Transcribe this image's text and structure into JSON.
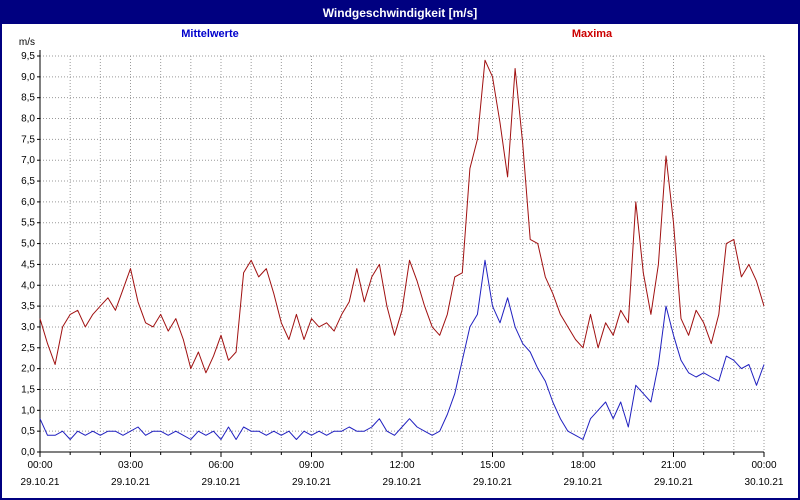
{
  "window": {
    "title": "Windgeschwindigkeit [m/s]"
  },
  "legend": {
    "mean_label": "Mittelwerte",
    "max_label": "Maxima"
  },
  "colors": {
    "titlebar_bg": "#000080",
    "window_border": "#000080",
    "mean_line": "#2020c0",
    "max_line": "#a01010",
    "mean_legend": "#0000cc",
    "max_legend": "#cc0000",
    "grid": "#999999",
    "axis": "#000000",
    "label_text": "#000000"
  },
  "chart_data": {
    "type": "line",
    "title": "Windgeschwindigkeit [m/s]",
    "ylabel": "m/s",
    "ylim": [
      0,
      9.5
    ],
    "ytick_step": 0.5,
    "ytick_labels": [
      "0,0",
      "0,5",
      "1,0",
      "1,5",
      "2,0",
      "2,5",
      "3,0",
      "3,5",
      "4,0",
      "4,5",
      "5,0",
      "5,5",
      "6,0",
      "6,5",
      "7,0",
      "7,5",
      "8,0",
      "8,5",
      "9,0",
      "9,5"
    ],
    "x_hours": 24,
    "xtick_hours": [
      0,
      3,
      6,
      9,
      12,
      15,
      18,
      21,
      24
    ],
    "xtick_labels": [
      "00:00",
      "03:00",
      "06:00",
      "09:00",
      "12:00",
      "15:00",
      "18:00",
      "21:00",
      "00:00"
    ],
    "xtick_dates": [
      "29.10.21",
      "29.10.21",
      "29.10.21",
      "29.10.21",
      "29.10.21",
      "29.10.21",
      "29.10.21",
      "29.10.21",
      "30.10.21"
    ],
    "sample_interval_minutes": 15,
    "grid": true,
    "legend_position": "top",
    "series": [
      {
        "name": "Maxima",
        "color": "#a01010",
        "values": [
          3.2,
          2.6,
          2.1,
          3.0,
          3.3,
          3.4,
          3.0,
          3.3,
          3.5,
          3.7,
          3.4,
          3.9,
          4.4,
          3.6,
          3.1,
          3.0,
          3.3,
          2.9,
          3.2,
          2.7,
          2.0,
          2.4,
          1.9,
          2.3,
          2.8,
          2.2,
          2.4,
          4.3,
          4.6,
          4.2,
          4.4,
          3.8,
          3.1,
          2.7,
          3.3,
          2.7,
          3.2,
          3.0,
          3.1,
          2.9,
          3.3,
          3.6,
          4.4,
          3.6,
          4.2,
          4.5,
          3.5,
          2.8,
          3.4,
          4.6,
          4.1,
          3.5,
          3.0,
          2.8,
          3.3,
          4.2,
          4.3,
          6.8,
          7.5,
          9.4,
          9.0,
          7.9,
          6.6,
          9.2,
          7.4,
          5.1,
          5.0,
          4.2,
          3.8,
          3.3,
          3.0,
          2.7,
          2.5,
          3.3,
          2.5,
          3.1,
          2.8,
          3.4,
          3.1,
          6.0,
          4.3,
          3.3,
          4.5,
          7.1,
          5.5,
          3.2,
          2.8,
          3.4,
          3.1,
          2.6,
          3.3,
          5.0,
          5.1,
          4.2,
          4.5,
          4.1,
          3.5
        ]
      },
      {
        "name": "Mittelwerte",
        "color": "#2020c0",
        "values": [
          0.8,
          0.4,
          0.4,
          0.5,
          0.3,
          0.5,
          0.4,
          0.5,
          0.4,
          0.5,
          0.5,
          0.4,
          0.5,
          0.6,
          0.4,
          0.5,
          0.5,
          0.4,
          0.5,
          0.4,
          0.3,
          0.5,
          0.4,
          0.5,
          0.3,
          0.6,
          0.3,
          0.6,
          0.5,
          0.5,
          0.4,
          0.5,
          0.4,
          0.5,
          0.3,
          0.5,
          0.4,
          0.5,
          0.4,
          0.5,
          0.5,
          0.6,
          0.5,
          0.5,
          0.6,
          0.8,
          0.5,
          0.4,
          0.6,
          0.8,
          0.6,
          0.5,
          0.4,
          0.5,
          0.9,
          1.4,
          2.2,
          3.0,
          3.3,
          4.6,
          3.5,
          3.1,
          3.7,
          3.0,
          2.6,
          2.4,
          2.0,
          1.7,
          1.2,
          0.8,
          0.5,
          0.4,
          0.3,
          0.8,
          1.0,
          1.2,
          0.8,
          1.2,
          0.6,
          1.6,
          1.4,
          1.2,
          2.1,
          3.5,
          2.8,
          2.2,
          1.9,
          1.8,
          1.9,
          1.8,
          1.7,
          2.3,
          2.2,
          2.0,
          2.1,
          1.6,
          2.1
        ]
      }
    ]
  }
}
